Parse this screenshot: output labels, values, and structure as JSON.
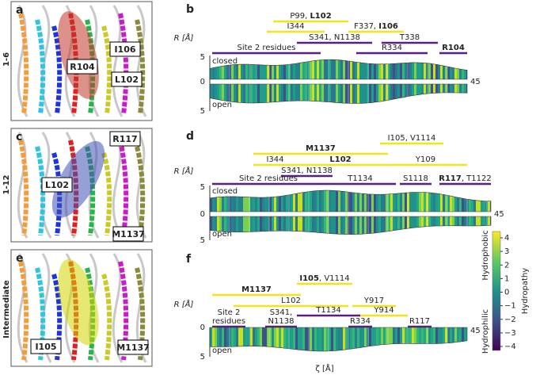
{
  "row_labels": [
    "1-6",
    "1-12",
    "Intermediate"
  ],
  "structures": [
    {
      "letter": "a",
      "labels": [
        "R104",
        "I106",
        "L102"
      ]
    },
    {
      "letter": "c",
      "labels": [
        "R117",
        "L102",
        "M1137"
      ]
    },
    {
      "letter": "e",
      "labels": [
        "I105",
        "M1137"
      ]
    }
  ],
  "profiles": [
    {
      "letter": "b",
      "y_label": "R [Å]",
      "y_ticks": [
        "5",
        "0",
        "5"
      ],
      "end_label": "45",
      "state_labels": [
        "closed",
        "open"
      ],
      "bars": [
        {
          "color": "#f3e21c",
          "lines": [
            [
              "P99, ",
              {
                "text": "L102",
                "bold": true
              }
            ]
          ]
        },
        {
          "color": "#f3e21c",
          "lines": [
            [
              "I344"
            ]
          ]
        },
        {
          "color": "#f3e21c",
          "lines": [
            [
              "F337, ",
              {
                "text": "I106",
                "bold": true
              }
            ]
          ]
        },
        {
          "color": "#5b1e7c",
          "lines": [
            [
              "S341, N1138"
            ]
          ]
        },
        {
          "color": "#5b1e7c",
          "lines": [
            [
              "T338"
            ]
          ]
        },
        {
          "color": "#5b1e7c",
          "lines": [
            [
              "Site 2 residues"
            ]
          ]
        },
        {
          "color": "#5b1e7c",
          "lines": [
            [
              "R334"
            ]
          ]
        },
        {
          "color": "#5b1e7c",
          "lines": [
            [
              {
                "text": "R104",
                "bold": true
              }
            ]
          ]
        }
      ]
    },
    {
      "letter": "d",
      "y_label": "R [Å]",
      "y_ticks": [
        "5",
        "0",
        "5"
      ],
      "end_label": "45",
      "state_labels": [
        "closed",
        "open"
      ],
      "bars": [
        {
          "color": "#f3e21c",
          "lines": [
            [
              "I105, V1114"
            ]
          ]
        },
        {
          "color": "#f3e21c",
          "lines": [
            [
              {
                "text": "M1137",
                "bold": true
              }
            ]
          ]
        },
        {
          "color": "#f3e21c",
          "lines": [
            [
              "I344"
            ]
          ]
        },
        {
          "color": "#f3e21c",
          "lines": [
            [
              {
                "text": "L102",
                "bold": true
              }
            ]
          ]
        },
        {
          "color": "#f3e21c",
          "lines": [
            [
              "Y109"
            ]
          ]
        },
        {
          "color": "#5b1e7c",
          "lines": [
            [
              "S341, N1138"
            ]
          ]
        },
        {
          "color": "#5b1e7c",
          "lines": [
            [
              "Site 2 residues"
            ]
          ]
        },
        {
          "color": "#5b1e7c",
          "lines": [
            [
              "T1134"
            ]
          ]
        },
        {
          "color": "#5b1e7c",
          "lines": [
            [
              "S1118"
            ]
          ]
        },
        {
          "color": "#5b1e7c",
          "lines": [
            [
              {
                "text": "R117",
                "bold": true
              },
              ", T1122"
            ]
          ]
        }
      ]
    },
    {
      "letter": "f",
      "y_label": "R [Å]",
      "y_ticks": [
        "0",
        "5"
      ],
      "end_label": "45",
      "state_labels": [
        "open"
      ],
      "bars": [
        {
          "color": "#f3e21c",
          "lines": [
            [
              {
                "text": "I105",
                "bold": true
              },
              ", V1114"
            ]
          ]
        },
        {
          "color": "#f3e21c",
          "lines": [
            [
              {
                "text": "M1137",
                "bold": true
              }
            ]
          ]
        },
        {
          "color": "#f3e21c",
          "lines": [
            [
              "L102"
            ]
          ]
        },
        {
          "color": "#f3e21c",
          "lines": [
            [
              "Y917"
            ]
          ]
        },
        {
          "color": "#5b1e7c",
          "lines": [
            [
              "Site 2"
            ],
            [
              "residues"
            ]
          ]
        },
        {
          "color": "#5b1e7c",
          "lines": [
            [
              "S341,"
            ],
            [
              "N1138"
            ]
          ]
        },
        {
          "color": "#5b1e7c",
          "lines": [
            [
              "T1134"
            ]
          ]
        },
        {
          "color": "#f3e21c",
          "lines": [
            [
              "Y914"
            ]
          ]
        },
        {
          "color": "#5b1e7c",
          "lines": [
            [
              "R334"
            ]
          ]
        },
        {
          "color": "#5b1e7c",
          "lines": [
            [
              "R117"
            ]
          ]
        }
      ]
    }
  ],
  "x_label": "ζ [Å]",
  "colorbar": {
    "title": "Hydropathy",
    "high": "Hydrophobic",
    "low": "Hydrophilic",
    "ticks": [
      "4",
      "3",
      "2",
      "1",
      "0",
      "−1",
      "−2",
      "−3",
      "−4"
    ]
  }
}
